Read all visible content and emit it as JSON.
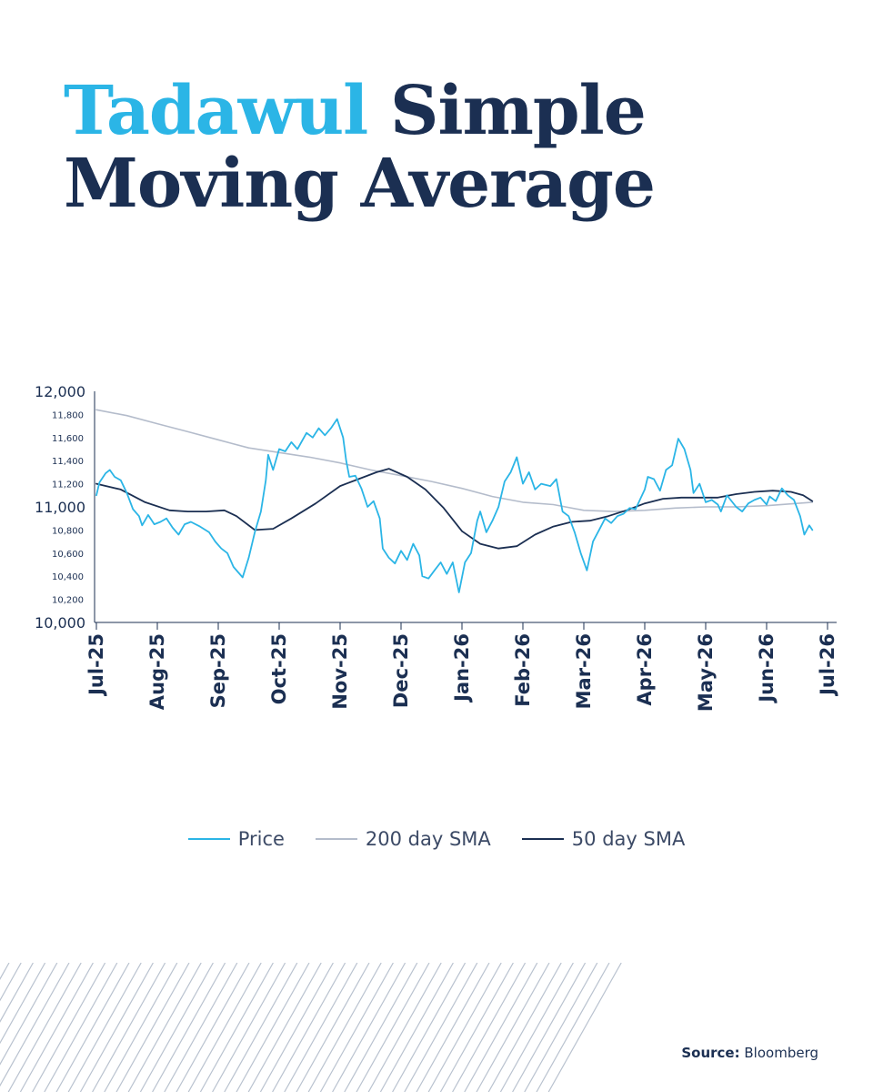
{
  "title": {
    "accent": "Tadawul",
    "line1_rest": "Simple",
    "line2": "Moving Average"
  },
  "source": {
    "label": "Source:",
    "value": "Bloomberg"
  },
  "colors": {
    "price": "#2bb5e6",
    "sma200": "#b4bccb",
    "sma50": "#1b2f52",
    "axis": "#1b2f52",
    "title": "#1b2f52",
    "accent": "#2bb5e6"
  },
  "chart_data": {
    "type": "line",
    "title": "",
    "xlabel": "",
    "ylabel": "",
    "ylim": [
      10000,
      12000
    ],
    "x_range": [
      0,
      12.5
    ],
    "grid": false,
    "legend_position": "bottom",
    "y_ticks_major": [
      {
        "value": 12000,
        "label": "12,000"
      },
      {
        "value": 11000,
        "label": "11,000"
      },
      {
        "value": 10000,
        "label": "10,000"
      }
    ],
    "y_ticks_minor": [
      {
        "value": 11800,
        "label": "11,800"
      },
      {
        "value": 11600,
        "label": "11,600"
      },
      {
        "value": 11400,
        "label": "11,400"
      },
      {
        "value": 11200,
        "label": "11,200"
      },
      {
        "value": 10800,
        "label": "10,800"
      },
      {
        "value": 10600,
        "label": "10,600"
      },
      {
        "value": 10400,
        "label": "10,400"
      },
      {
        "value": 10200,
        "label": "10,200"
      }
    ],
    "x_ticks": [
      {
        "value": 0,
        "label": "Jul-25"
      },
      {
        "value": 1,
        "label": "Aug-25"
      },
      {
        "value": 2,
        "label": "Sep-25"
      },
      {
        "value": 3,
        "label": "Oct-25"
      },
      {
        "value": 4,
        "label": "Nov-25"
      },
      {
        "value": 5,
        "label": "Dec-25"
      },
      {
        "value": 6,
        "label": "Jan-26"
      },
      {
        "value": 7,
        "label": "Feb-26"
      },
      {
        "value": 8,
        "label": "Mar-26"
      },
      {
        "value": 9,
        "label": "Apr-26"
      },
      {
        "value": 10,
        "label": "May-26"
      },
      {
        "value": 11,
        "label": "Jun-26"
      },
      {
        "value": 12,
        "label": "Jul-26"
      }
    ],
    "series": [
      {
        "name": "Price",
        "color": "#2bb5e6",
        "width": 1.8,
        "points": [
          [
            0,
            11100
          ],
          [
            0.05,
            11210
          ],
          [
            0.15,
            11290
          ],
          [
            0.22,
            11320
          ],
          [
            0.3,
            11260
          ],
          [
            0.4,
            11230
          ],
          [
            0.5,
            11120
          ],
          [
            0.6,
            10980
          ],
          [
            0.7,
            10920
          ],
          [
            0.75,
            10840
          ],
          [
            0.85,
            10930
          ],
          [
            0.95,
            10850
          ],
          [
            1.05,
            10870
          ],
          [
            1.15,
            10900
          ],
          [
            1.25,
            10820
          ],
          [
            1.35,
            10760
          ],
          [
            1.45,
            10850
          ],
          [
            1.55,
            10870
          ],
          [
            1.7,
            10830
          ],
          [
            1.85,
            10780
          ],
          [
            1.95,
            10700
          ],
          [
            2.05,
            10640
          ],
          [
            2.15,
            10600
          ],
          [
            2.25,
            10480
          ],
          [
            2.4,
            10390
          ],
          [
            2.5,
            10560
          ],
          [
            2.6,
            10780
          ],
          [
            2.7,
            10960
          ],
          [
            2.78,
            11230
          ],
          [
            2.82,
            11450
          ],
          [
            2.9,
            11320
          ],
          [
            3.0,
            11500
          ],
          [
            3.1,
            11480
          ],
          [
            3.2,
            11560
          ],
          [
            3.3,
            11500
          ],
          [
            3.45,
            11640
          ],
          [
            3.55,
            11600
          ],
          [
            3.65,
            11680
          ],
          [
            3.75,
            11620
          ],
          [
            3.85,
            11680
          ],
          [
            3.95,
            11760
          ],
          [
            4.05,
            11600
          ],
          [
            4.1,
            11400
          ],
          [
            4.15,
            11260
          ],
          [
            4.25,
            11270
          ],
          [
            4.35,
            11160
          ],
          [
            4.45,
            11000
          ],
          [
            4.55,
            11050
          ],
          [
            4.65,
            10900
          ],
          [
            4.7,
            10640
          ],
          [
            4.8,
            10560
          ],
          [
            4.9,
            10510
          ],
          [
            5.0,
            10620
          ],
          [
            5.1,
            10540
          ],
          [
            5.2,
            10680
          ],
          [
            5.3,
            10580
          ],
          [
            5.35,
            10400
          ],
          [
            5.45,
            10380
          ],
          [
            5.55,
            10450
          ],
          [
            5.65,
            10520
          ],
          [
            5.75,
            10420
          ],
          [
            5.85,
            10520
          ],
          [
            5.9,
            10390
          ],
          [
            5.95,
            10260
          ],
          [
            6.05,
            10520
          ],
          [
            6.15,
            10600
          ],
          [
            6.25,
            10880
          ],
          [
            6.3,
            10960
          ],
          [
            6.4,
            10780
          ],
          [
            6.5,
            10880
          ],
          [
            6.6,
            11000
          ],
          [
            6.7,
            11220
          ],
          [
            6.8,
            11300
          ],
          [
            6.9,
            11430
          ],
          [
            7.0,
            11200
          ],
          [
            7.1,
            11300
          ],
          [
            7.2,
            11150
          ],
          [
            7.3,
            11200
          ],
          [
            7.45,
            11180
          ],
          [
            7.55,
            11240
          ],
          [
            7.65,
            10960
          ],
          [
            7.75,
            10920
          ],
          [
            7.85,
            10780
          ],
          [
            7.95,
            10600
          ],
          [
            8.05,
            10450
          ],
          [
            8.15,
            10700
          ],
          [
            8.25,
            10800
          ],
          [
            8.35,
            10900
          ],
          [
            8.45,
            10860
          ],
          [
            8.55,
            10920
          ],
          [
            8.65,
            10940
          ],
          [
            8.75,
            10990
          ],
          [
            8.85,
            10980
          ],
          [
            9.0,
            11150
          ],
          [
            9.05,
            11260
          ],
          [
            9.15,
            11240
          ],
          [
            9.25,
            11140
          ],
          [
            9.35,
            11320
          ],
          [
            9.45,
            11360
          ],
          [
            9.55,
            11590
          ],
          [
            9.65,
            11500
          ],
          [
            9.75,
            11320
          ],
          [
            9.8,
            11120
          ],
          [
            9.9,
            11200
          ],
          [
            10.0,
            11040
          ],
          [
            10.1,
            11060
          ],
          [
            10.2,
            11020
          ],
          [
            10.25,
            10960
          ],
          [
            10.35,
            11100
          ],
          [
            10.5,
            11000
          ],
          [
            10.6,
            10960
          ],
          [
            10.7,
            11030
          ],
          [
            10.8,
            11060
          ],
          [
            10.9,
            11080
          ],
          [
            11.0,
            11020
          ],
          [
            11.05,
            11090
          ],
          [
            11.15,
            11050
          ],
          [
            11.25,
            11160
          ],
          [
            11.35,
            11100
          ],
          [
            11.45,
            11060
          ],
          [
            11.55,
            10920
          ],
          [
            11.62,
            10760
          ],
          [
            11.7,
            10840
          ],
          [
            11.75,
            10800
          ]
        ]
      },
      {
        "name": "200 day SMA",
        "color": "#b4bccb",
        "width": 1.6,
        "points": [
          [
            0,
            11840
          ],
          [
            0.5,
            11790
          ],
          [
            1,
            11720
          ],
          [
            1.5,
            11650
          ],
          [
            2,
            11580
          ],
          [
            2.5,
            11510
          ],
          [
            3,
            11470
          ],
          [
            3.5,
            11430
          ],
          [
            4,
            11380
          ],
          [
            4.5,
            11320
          ],
          [
            5,
            11270
          ],
          [
            5.5,
            11220
          ],
          [
            6,
            11160
          ],
          [
            6.5,
            11090
          ],
          [
            7,
            11040
          ],
          [
            7.5,
            11020
          ],
          [
            8,
            10970
          ],
          [
            8.5,
            10960
          ],
          [
            9,
            10970
          ],
          [
            9.5,
            10990
          ],
          [
            10,
            11000
          ],
          [
            10.5,
            11000
          ],
          [
            11,
            11010
          ],
          [
            11.5,
            11030
          ],
          [
            11.75,
            11040
          ]
        ]
      },
      {
        "name": "50 day SMA",
        "color": "#1b2f52",
        "width": 1.8,
        "points": [
          [
            0,
            11200
          ],
          [
            0.4,
            11150
          ],
          [
            0.8,
            11040
          ],
          [
            1.2,
            10970
          ],
          [
            1.5,
            10960
          ],
          [
            1.8,
            10960
          ],
          [
            2.1,
            10970
          ],
          [
            2.3,
            10920
          ],
          [
            2.6,
            10800
          ],
          [
            2.9,
            10810
          ],
          [
            3.2,
            10900
          ],
          [
            3.6,
            11030
          ],
          [
            4.0,
            11180
          ],
          [
            4.3,
            11240
          ],
          [
            4.6,
            11300
          ],
          [
            4.8,
            11330
          ],
          [
            5.1,
            11260
          ],
          [
            5.4,
            11150
          ],
          [
            5.7,
            10990
          ],
          [
            6.0,
            10790
          ],
          [
            6.3,
            10680
          ],
          [
            6.6,
            10640
          ],
          [
            6.9,
            10660
          ],
          [
            7.2,
            10760
          ],
          [
            7.5,
            10830
          ],
          [
            7.8,
            10870
          ],
          [
            8.1,
            10880
          ],
          [
            8.4,
            10920
          ],
          [
            8.7,
            10970
          ],
          [
            9.0,
            11030
          ],
          [
            9.3,
            11070
          ],
          [
            9.6,
            11080
          ],
          [
            9.9,
            11080
          ],
          [
            10.2,
            11080
          ],
          [
            10.5,
            11110
          ],
          [
            10.8,
            11130
          ],
          [
            11.1,
            11140
          ],
          [
            11.4,
            11130
          ],
          [
            11.6,
            11100
          ],
          [
            11.75,
            11050
          ]
        ]
      }
    ]
  }
}
